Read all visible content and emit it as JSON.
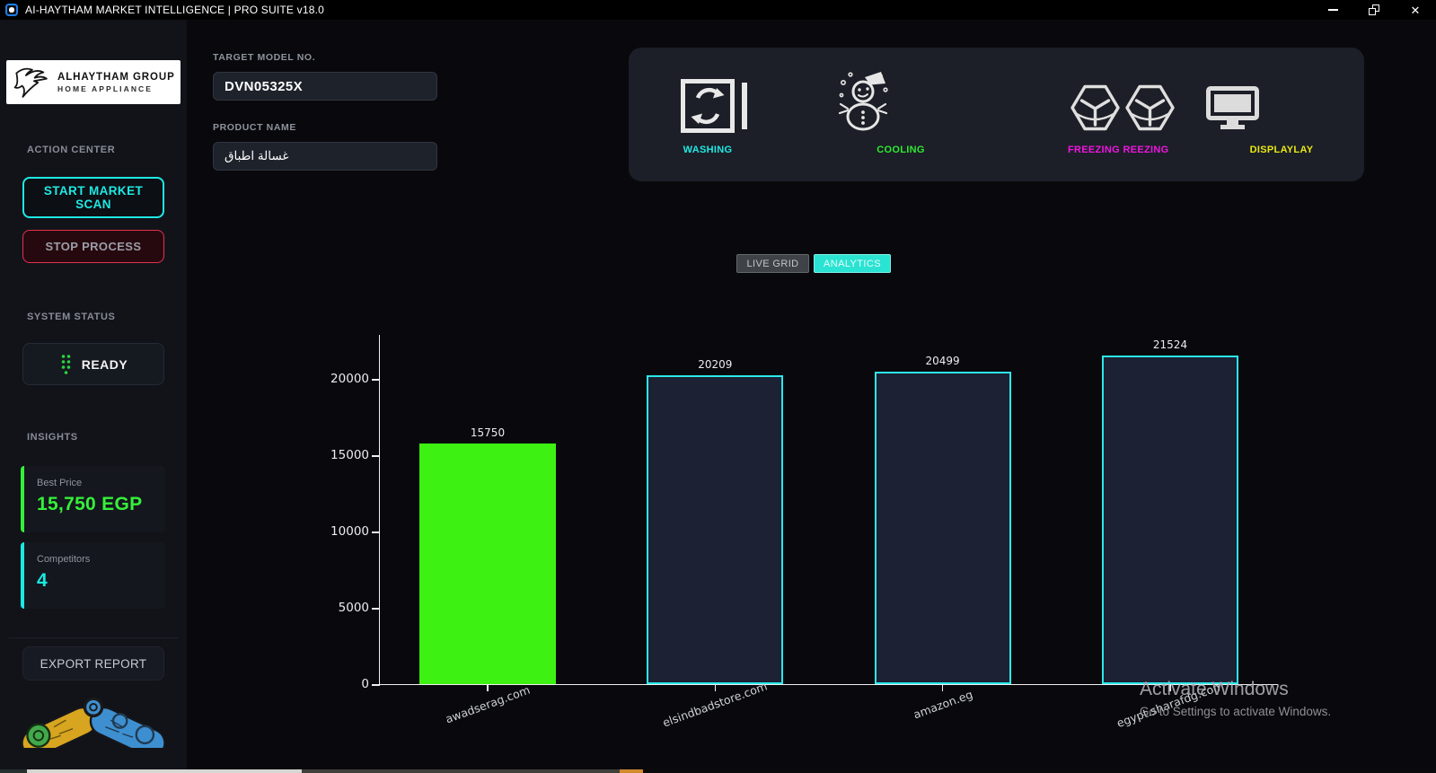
{
  "window": {
    "title": "AI-HAYTHAM MARKET INTELLIGENCE | PRO SUITE v18.0"
  },
  "sidebar": {
    "logo_line1": "ALHAYTHAM GROUP",
    "logo_line2": "HOME APPLIANCE",
    "action_center_label": "ACTION CENTER",
    "start_scan_label": "START MARKET SCAN",
    "stop_process_label": "STOP PROCESS",
    "system_status_label": "SYSTEM STATUS",
    "status_value": "READY",
    "insights_label": "INSIGHTS",
    "best_price_label": "Best Price",
    "best_price_value": "15,750 EGP",
    "competitors_label": "Competitors",
    "competitors_value": "4",
    "export_label": "EXPORT REPORT"
  },
  "form": {
    "model_label": "TARGET MODEL NO.",
    "model_value": "DVN05325X",
    "product_label": "PRODUCT NAME",
    "product_value": "غسالة اطباق"
  },
  "features": [
    {
      "icon": "washing-machine-icon",
      "label": "WASHING",
      "color": "#1FE9E4"
    },
    {
      "icon": "snowman-icon",
      "label": "COOLING",
      "color": "#2EE832"
    },
    {
      "icon": "ice-cube-icon",
      "label": "FREEZING",
      "color": "#EE16DF"
    },
    {
      "icon": "ice-cube-icon",
      "label": "REEZING",
      "color": "#EE16DF"
    },
    {
      "icon": "monitor-icon",
      "label": "DISPLAYLAY",
      "color": "#E9E714"
    }
  ],
  "tabs": [
    {
      "label": "LIVE GRID",
      "active": false
    },
    {
      "label": "ANALYTICS",
      "active": true
    }
  ],
  "chart_data": {
    "type": "bar",
    "title": "",
    "xlabel": "",
    "ylabel": "",
    "categories": [
      "awadserag.com",
      "elsindbadstore.com",
      "amazon.eg",
      "egypt.sharafdg.com"
    ],
    "values": [
      15750,
      20209,
      20499,
      21524
    ],
    "value_labels": [
      "15750",
      "20209",
      "20499",
      "21524"
    ],
    "yticks": [
      0,
      5000,
      10000,
      15000,
      20000
    ],
    "ylim": [
      0,
      22940
    ],
    "grid": false,
    "legend": "none",
    "highlight_index": 0,
    "highlight_fill": "#3DF212",
    "bar_fill": "#1C2134",
    "bar_edge": "#2BE9E9",
    "axis_color": "#F0F0F2",
    "tick_label_color": "#ECECEF"
  },
  "watermark": {
    "line1": "Activate Windows",
    "line2": "Go to Settings to activate Windows."
  },
  "colors": {
    "cyan_accent": "#1FE9E4",
    "green_accent": "#35F03A",
    "red_accent": "#E3314E",
    "magenta_accent": "#EE16DF",
    "yellow_accent": "#E9E714",
    "panel_bg": "#1C1F27",
    "sidebar_bg": "#121319",
    "main_bg": "#09090D"
  }
}
